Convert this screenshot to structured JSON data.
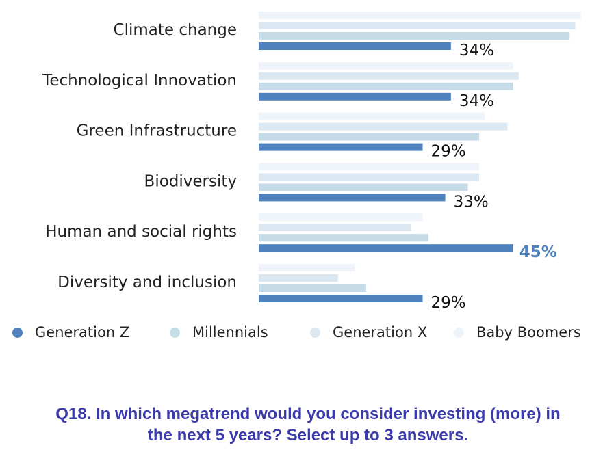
{
  "chart_data": {
    "type": "bar",
    "orientation": "horizontal",
    "categories": [
      "Climate change",
      "Technological Innovation",
      "Green Infrastructure",
      "Biodiversity",
      "Human and social rights",
      "Diversity and inclusion"
    ],
    "series": [
      {
        "name": "Baby Boomers",
        "color": "#eef4fa",
        "values": [
          57,
          45,
          40,
          39,
          29,
          17
        ]
      },
      {
        "name": "Generation X",
        "color": "#dce8f1",
        "values": [
          56,
          46,
          44,
          39,
          27,
          14
        ]
      },
      {
        "name": "Millennials",
        "color": "#c6dbe8",
        "values": [
          55,
          45,
          39,
          37,
          30,
          19
        ]
      },
      {
        "name": "Generation Z",
        "color": "#4f81bd",
        "values": [
          34,
          34,
          29,
          33,
          45,
          29
        ]
      }
    ],
    "data_labels": [
      "34%",
      "34%",
      "29%",
      "33%",
      "45%",
      "29%"
    ],
    "highlight_label_index": 4,
    "highlight_color": "#4f81bd",
    "legend_order": [
      "Generation Z",
      "Millennials",
      "Generation X",
      "Baby Boomers"
    ],
    "legend_placement": "bottom",
    "grid": false,
    "xlim": [
      0,
      60
    ]
  },
  "question": {
    "line1": "Q18. In which megatrend would you consider investing (more) in",
    "line2": "the next 5 years? Select up to 3 answers."
  }
}
